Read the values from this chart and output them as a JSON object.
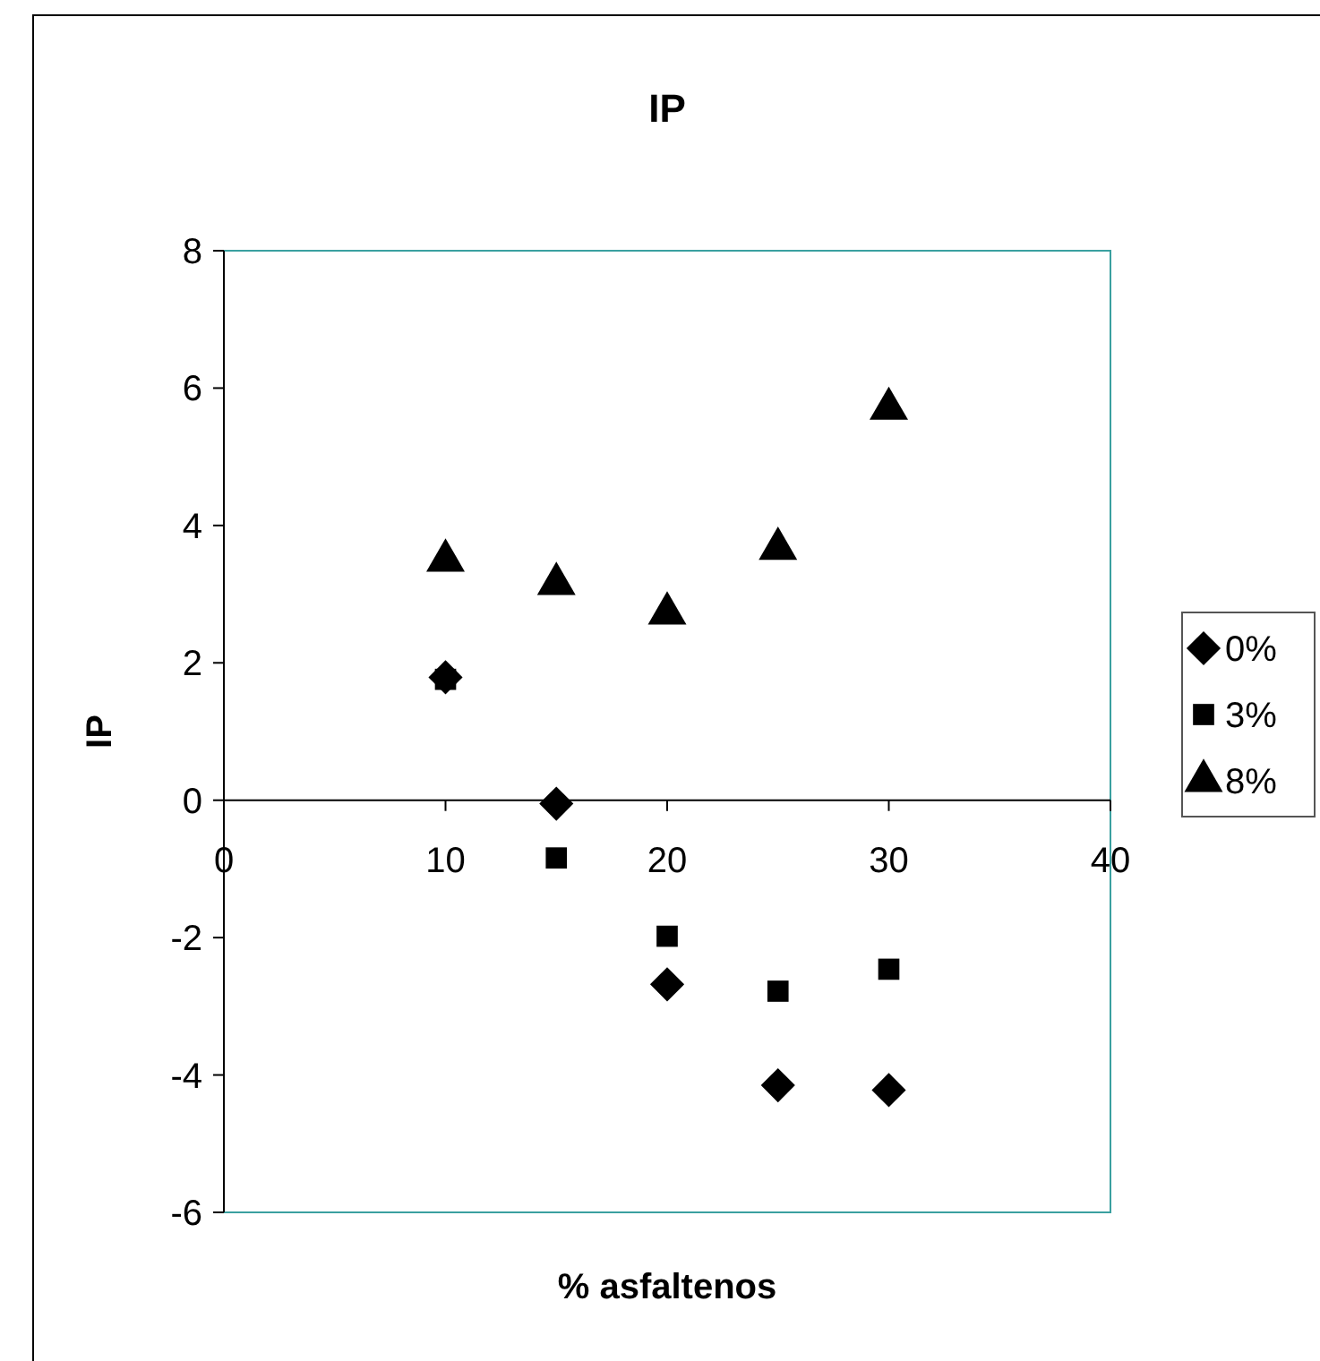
{
  "chart_data": {
    "type": "scatter",
    "title": "IP",
    "xlabel": "% asfaltenos",
    "ylabel": "IP",
    "x": [
      10,
      15,
      20,
      25,
      30
    ],
    "series": [
      {
        "name": "0%",
        "color": "#000000",
        "marker": "diamond",
        "values": [
          1.79,
          -0.05,
          -2.68,
          -4.15,
          -4.22
        ]
      },
      {
        "name": "3%",
        "color": "#000000",
        "marker": "square",
        "values": [
          1.76,
          -0.84,
          -1.98,
          -2.78,
          -2.46
        ]
      },
      {
        "name": "8%",
        "color": "#000000",
        "marker": "triangle",
        "values": [
          3.49,
          3.15,
          2.72,
          3.66,
          5.7
        ]
      }
    ],
    "xlim": [
      0,
      40
    ],
    "xticks": [
      0,
      10,
      20,
      30,
      40
    ],
    "ylim": [
      -6,
      8
    ],
    "yticks": [
      -6,
      -4,
      -2,
      0,
      2,
      4,
      6,
      8
    ],
    "grid": false,
    "legend": "right"
  }
}
